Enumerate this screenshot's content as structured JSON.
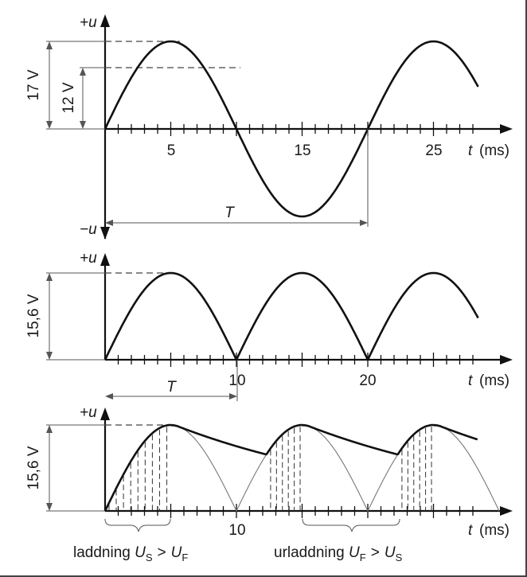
{
  "panel1": {
    "y_pos_label": "+u",
    "y_neg_label": "−u",
    "amp_outer_label": "17 V",
    "amp_inner_label": "12 V",
    "ticks": [
      "5",
      "15",
      "25"
    ],
    "x_axis_var": "t",
    "x_axis_unit": "(ms)",
    "period_label": "T"
  },
  "panel2": {
    "y_pos_label": "+u",
    "amp_label": "15,6 V",
    "ticks": [
      "10",
      "20"
    ],
    "x_axis_var": "t",
    "x_axis_unit": "(ms)",
    "period_label": "T"
  },
  "panel3": {
    "y_pos_label": "+u",
    "amp_label": "15,6 V",
    "ticks": [
      "10"
    ],
    "x_axis_var": "t",
    "x_axis_unit": "(ms)",
    "charge_text": "laddning",
    "charge_lhs": "U",
    "charge_lhs_sub": "S",
    "charge_rhs": "U",
    "charge_rhs_sub": "F",
    "discharge_text": "urladdning",
    "discharge_lhs": "U",
    "discharge_lhs_sub": "F",
    "discharge_rhs": "U",
    "discharge_rhs_sub": "S",
    "gt_symbol": ">"
  },
  "colors": {
    "ink": "#111111",
    "guide": "#555555",
    "ghost": "#777777"
  }
}
